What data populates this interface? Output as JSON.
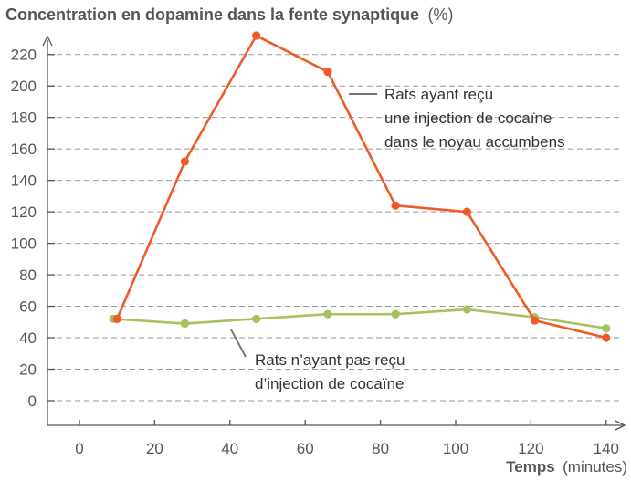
{
  "chart_data": {
    "type": "line",
    "title": "Concentration en dopamine dans la fente synaptique",
    "title_unit": "(%)",
    "xlabel": "Temps",
    "xlabel_unit": "(minutes)",
    "xlim": [
      -5,
      145
    ],
    "ylim": [
      -15,
      230
    ],
    "xticks": [
      0,
      20,
      40,
      60,
      80,
      100,
      120,
      140
    ],
    "yticks": [
      0,
      20,
      40,
      60,
      80,
      100,
      120,
      140,
      160,
      180,
      200,
      220
    ],
    "grid": "horizontal dashed",
    "series": [
      {
        "name": "Rats ayant reçu une injection de cocaïne dans le noyau accumbens",
        "label_lines": [
          "Rats ayant reçu",
          "une injection de cocaïne",
          "dans le noyau accumbens"
        ],
        "color": "#f05a28",
        "x": [
          10,
          28,
          47,
          66,
          84,
          103,
          121,
          140
        ],
        "y": [
          52,
          152,
          232,
          209,
          124,
          120,
          51,
          40
        ]
      },
      {
        "name": "Rats n’ayant pas reçu d’injection de cocaïne",
        "label_lines": [
          "Rats n’ayant pas reçu",
          "d’injection de cocaïne"
        ],
        "color": "#a5c25c",
        "x": [
          9,
          28,
          47,
          66,
          84,
          103,
          121,
          140
        ],
        "y": [
          52,
          49,
          52,
          55,
          55,
          58,
          53,
          46
        ]
      }
    ]
  }
}
